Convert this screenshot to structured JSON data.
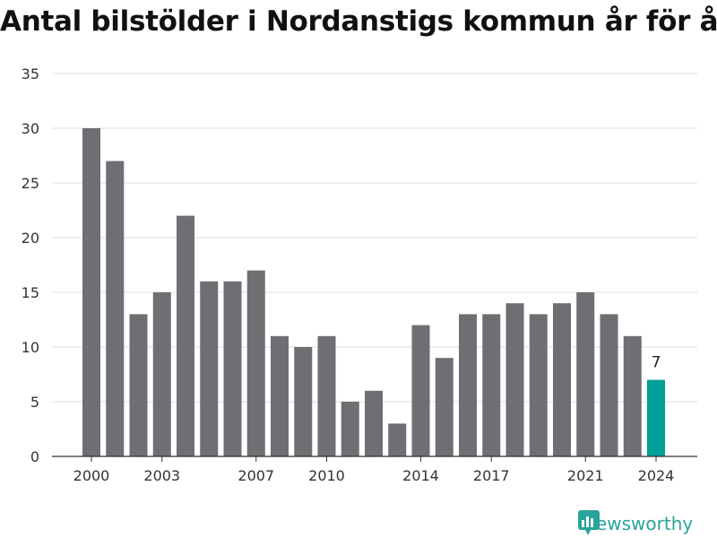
{
  "title": "Antal bilstölder i Nordanstigs kommun år för år",
  "brand": {
    "name": "Newsworthy",
    "icon": "newsworthy-logo-icon",
    "color": "#2aa39a"
  },
  "colors": {
    "bar": "#6f6e73",
    "highlight": "#00a096",
    "grid": "#dddddd",
    "axis": "#333333"
  },
  "chart_data": {
    "type": "bar",
    "title": "Antal bilstölder i Nordanstigs kommun år för år",
    "xlabel": "",
    "ylabel": "",
    "categories": [
      2000,
      2001,
      2002,
      2003,
      2004,
      2005,
      2006,
      2007,
      2008,
      2009,
      2010,
      2011,
      2012,
      2013,
      2014,
      2015,
      2016,
      2017,
      2018,
      2019,
      2020,
      2021,
      2022,
      2023,
      2024
    ],
    "values": [
      30,
      27,
      13,
      15,
      22,
      16,
      16,
      17,
      11,
      10,
      11,
      5,
      6,
      3,
      12,
      9,
      13,
      13,
      14,
      13,
      14,
      15,
      13,
      11,
      7
    ],
    "x_tick_labels": [
      "2000",
      "2003",
      "2007",
      "2010",
      "2014",
      "2017",
      "2021",
      "2024"
    ],
    "y_ticks": [
      0,
      5,
      10,
      15,
      20,
      25,
      30,
      35
    ],
    "ylim": [
      0,
      35
    ],
    "highlight_index": 24,
    "data_labels": [
      {
        "index": 24,
        "text": "7"
      }
    ],
    "grid": true,
    "legend": "none"
  }
}
